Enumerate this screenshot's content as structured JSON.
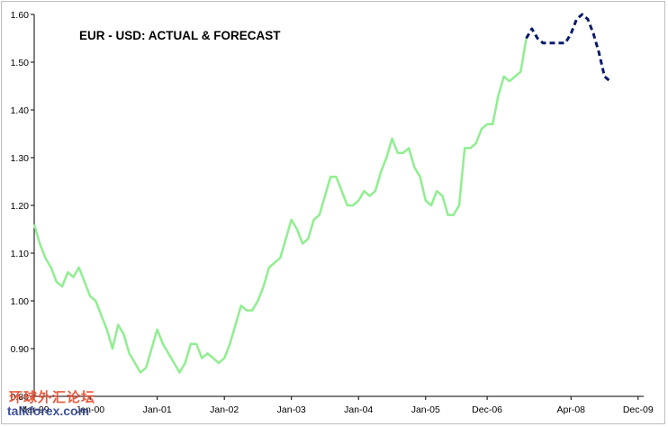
{
  "chart_data": {
    "type": "line",
    "title": "EUR - USD: ACTUAL & FORECAST",
    "xlabel": "",
    "ylabel": "",
    "ylim": [
      0.8,
      1.6
    ],
    "yticks": [
      "0.80",
      "0.90",
      "1.00",
      "1.10",
      "1.20",
      "1.30",
      "1.40",
      "1.50",
      "1.60"
    ],
    "xticks": [
      {
        "label": "Mar-99",
        "t": 0
      },
      {
        "label": "Jan-00",
        "t": 10
      },
      {
        "label": "Jan-01",
        "t": 22
      },
      {
        "label": "Jan-02",
        "t": 34
      },
      {
        "label": "Jan-03",
        "t": 46
      },
      {
        "label": "Jan-04",
        "t": 58
      },
      {
        "label": "Jan-05",
        "t": 70
      },
      {
        "label": "Dec-06",
        "t": 81
      },
      {
        "label": "Apr-08",
        "t": 96
      },
      {
        "label": "Dec-09",
        "t": 108
      }
    ],
    "xrange": [
      0,
      109
    ],
    "grid": false,
    "series": [
      {
        "color": "#90ee90",
        "style": "solid",
        "points": [
          [
            0,
            1.16
          ],
          [
            1,
            1.12
          ],
          [
            2,
            1.09
          ],
          [
            3,
            1.07
          ],
          [
            4,
            1.04
          ],
          [
            5,
            1.03
          ],
          [
            6,
            1.06
          ],
          [
            7,
            1.05
          ],
          [
            8,
            1.07
          ],
          [
            9,
            1.04
          ],
          [
            10,
            1.01
          ],
          [
            11,
            1.0
          ],
          [
            12,
            0.97
          ],
          [
            13,
            0.94
          ],
          [
            14,
            0.9
          ],
          [
            15,
            0.95
          ],
          [
            16,
            0.93
          ],
          [
            17,
            0.89
          ],
          [
            18,
            0.87
          ],
          [
            19,
            0.85
          ],
          [
            20,
            0.86
          ],
          [
            21,
            0.9
          ],
          [
            22,
            0.94
          ],
          [
            23,
            0.91
          ],
          [
            24,
            0.89
          ],
          [
            25,
            0.87
          ],
          [
            26,
            0.85
          ],
          [
            27,
            0.87
          ],
          [
            28,
            0.91
          ],
          [
            29,
            0.91
          ],
          [
            30,
            0.88
          ],
          [
            31,
            0.89
          ],
          [
            32,
            0.88
          ],
          [
            33,
            0.87
          ],
          [
            34,
            0.88
          ],
          [
            35,
            0.91
          ],
          [
            36,
            0.95
          ],
          [
            37,
            0.99
          ],
          [
            38,
            0.98
          ],
          [
            39,
            0.98
          ],
          [
            40,
            1.0
          ],
          [
            41,
            1.03
          ],
          [
            42,
            1.07
          ],
          [
            43,
            1.08
          ],
          [
            44,
            1.09
          ],
          [
            45,
            1.13
          ],
          [
            46,
            1.17
          ],
          [
            47,
            1.15
          ],
          [
            48,
            1.12
          ],
          [
            49,
            1.13
          ],
          [
            50,
            1.17
          ],
          [
            51,
            1.18
          ],
          [
            52,
            1.22
          ],
          [
            53,
            1.26
          ],
          [
            54,
            1.26
          ],
          [
            55,
            1.23
          ],
          [
            56,
            1.2
          ],
          [
            57,
            1.2
          ],
          [
            58,
            1.21
          ],
          [
            59,
            1.23
          ],
          [
            60,
            1.22
          ],
          [
            61,
            1.23
          ],
          [
            62,
            1.27
          ],
          [
            63,
            1.3
          ],
          [
            64,
            1.34
          ],
          [
            65,
            1.31
          ],
          [
            66,
            1.31
          ],
          [
            67,
            1.32
          ],
          [
            68,
            1.28
          ],
          [
            69,
            1.26
          ],
          [
            70,
            1.21
          ],
          [
            71,
            1.2
          ],
          [
            72,
            1.23
          ],
          [
            73,
            1.22
          ],
          [
            74,
            1.18
          ],
          [
            75,
            1.18
          ],
          [
            76,
            1.2
          ],
          [
            77,
            1.32
          ],
          [
            78,
            1.32
          ],
          [
            79,
            1.33
          ],
          [
            80,
            1.36
          ],
          [
            81,
            1.37
          ],
          [
            82,
            1.37
          ],
          [
            83,
            1.43
          ],
          [
            84,
            1.47
          ],
          [
            85,
            1.46
          ],
          [
            86,
            1.47
          ],
          [
            87,
            1.48
          ],
          [
            88,
            1.55
          ]
        ]
      },
      {
        "color": "#0a1a6b",
        "style": "dashed",
        "points": [
          [
            88,
            1.55
          ],
          [
            89,
            1.57
          ],
          [
            90,
            1.55
          ],
          [
            91,
            1.54
          ],
          [
            92,
            1.54
          ],
          [
            93,
            1.54
          ],
          [
            94,
            1.54
          ],
          [
            95,
            1.54
          ],
          [
            96,
            1.56
          ],
          [
            97,
            1.59
          ],
          [
            98,
            1.6
          ],
          [
            99,
            1.59
          ],
          [
            100,
            1.56
          ],
          [
            101,
            1.52
          ],
          [
            102,
            1.47
          ],
          [
            103,
            1.46
          ]
        ]
      }
    ]
  },
  "watermark": {
    "cn_text": "环球外汇论坛",
    "en_text": "talkforex.com"
  }
}
